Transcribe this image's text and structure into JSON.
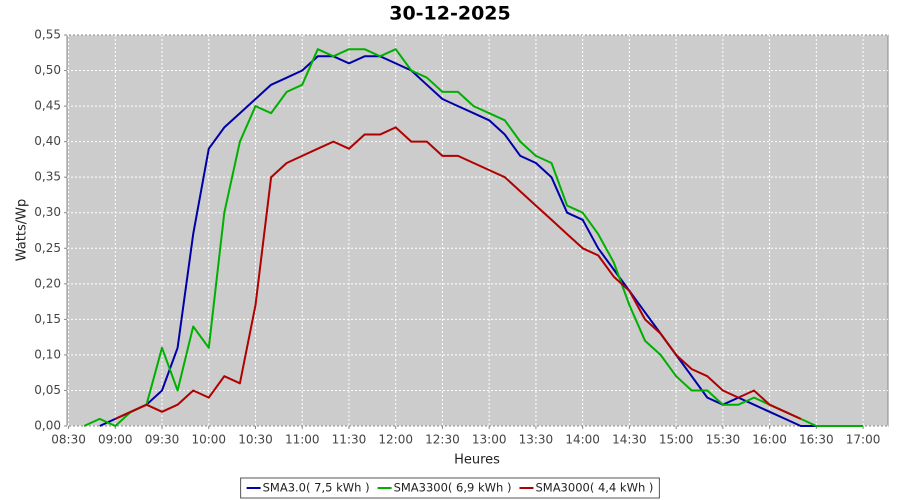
{
  "chart_data": {
    "type": "line",
    "title": "30-12-2025",
    "xlabel": "Heures",
    "ylabel": "Watts/Wp",
    "x": [
      "08:40",
      "08:50",
      "09:00",
      "09:10",
      "09:20",
      "09:30",
      "09:40",
      "09:50",
      "10:00",
      "10:10",
      "10:20",
      "10:30",
      "10:40",
      "10:50",
      "11:00",
      "11:10",
      "11:20",
      "11:30",
      "11:40",
      "11:50",
      "12:00",
      "12:10",
      "12:20",
      "12:30",
      "12:40",
      "12:50",
      "13:00",
      "13:10",
      "13:20",
      "13:30",
      "13:40",
      "13:50",
      "14:00",
      "14:10",
      "14:20",
      "14:30",
      "14:40",
      "14:50",
      "15:00",
      "15:10",
      "15:20",
      "15:30",
      "15:40",
      "15:50",
      "16:00",
      "16:10",
      "16:20",
      "16:30",
      "16:40",
      "16:50",
      "17:00"
    ],
    "series": [
      {
        "name": "SMA3.0( 7,5 kWh )",
        "color": "#0000a8",
        "values": [
          null,
          0.0,
          0.01,
          0.02,
          0.03,
          0.05,
          0.11,
          0.27,
          0.39,
          0.42,
          0.44,
          0.46,
          0.48,
          0.49,
          0.5,
          0.52,
          0.52,
          0.51,
          0.52,
          0.52,
          0.51,
          0.5,
          0.48,
          0.46,
          0.45,
          0.44,
          0.43,
          0.41,
          0.38,
          0.37,
          0.35,
          0.3,
          0.29,
          0.25,
          0.22,
          0.19,
          0.16,
          0.13,
          0.1,
          0.07,
          0.04,
          0.03,
          0.04,
          0.03,
          0.02,
          0.01,
          0.0,
          0.0,
          null,
          null,
          null
        ]
      },
      {
        "name": "SMA3300( 6,9 kWh )",
        "color": "#00b000",
        "values": [
          0.0,
          0.01,
          0.0,
          0.02,
          0.03,
          0.11,
          0.05,
          0.14,
          0.11,
          0.3,
          0.4,
          0.45,
          0.44,
          0.47,
          0.48,
          0.53,
          0.52,
          0.53,
          0.53,
          0.52,
          0.53,
          0.5,
          0.49,
          0.47,
          0.47,
          0.45,
          0.44,
          0.43,
          0.4,
          0.38,
          0.37,
          0.31,
          0.3,
          0.27,
          0.23,
          0.17,
          0.12,
          0.1,
          0.07,
          0.05,
          0.05,
          0.03,
          0.03,
          0.04,
          0.03,
          0.02,
          0.01,
          0.0,
          0.0,
          0.0,
          0.0
        ]
      },
      {
        "name": "SMA3000( 4,4 kWh )",
        "color": "#b00000",
        "values": [
          null,
          null,
          0.01,
          0.02,
          0.03,
          0.02,
          0.03,
          0.05,
          0.04,
          0.07,
          0.06,
          0.17,
          0.35,
          0.37,
          0.38,
          0.39,
          0.4,
          0.39,
          0.41,
          0.41,
          0.42,
          0.4,
          0.4,
          0.38,
          0.38,
          0.37,
          0.36,
          0.35,
          0.33,
          0.31,
          0.29,
          0.27,
          0.25,
          0.24,
          0.21,
          0.19,
          0.15,
          0.13,
          0.1,
          0.08,
          0.07,
          0.05,
          0.04,
          0.05,
          0.03,
          0.02,
          0.01,
          null,
          null,
          null,
          null
        ]
      }
    ],
    "xlim": [
      "08:29",
      "17:16"
    ],
    "xticks": [
      "08:30",
      "09:00",
      "09:30",
      "10:00",
      "10:30",
      "11:00",
      "11:30",
      "12:00",
      "12:30",
      "13:00",
      "13:30",
      "14:00",
      "14:30",
      "15:00",
      "15:30",
      "16:00",
      "16:30",
      "17:00"
    ],
    "ylim": [
      0,
      0.55
    ],
    "yticks": [
      {
        "value": 0,
        "label": "0,00"
      },
      {
        "value": 0.05,
        "label": "0,05"
      },
      {
        "value": 0.1,
        "label": "0,10"
      },
      {
        "value": 0.15,
        "label": "0,15"
      },
      {
        "value": 0.2,
        "label": "0,20"
      },
      {
        "value": 0.25,
        "label": "0,25"
      },
      {
        "value": 0.3,
        "label": "0,30"
      },
      {
        "value": 0.35,
        "label": "0,35"
      },
      {
        "value": 0.4,
        "label": "0,40"
      },
      {
        "value": 0.45,
        "label": "0,45"
      },
      {
        "value": 0.5,
        "label": "0,50"
      },
      {
        "value": 0.55,
        "label": "0,55"
      }
    ],
    "grid": true,
    "legend": "bottom"
  }
}
